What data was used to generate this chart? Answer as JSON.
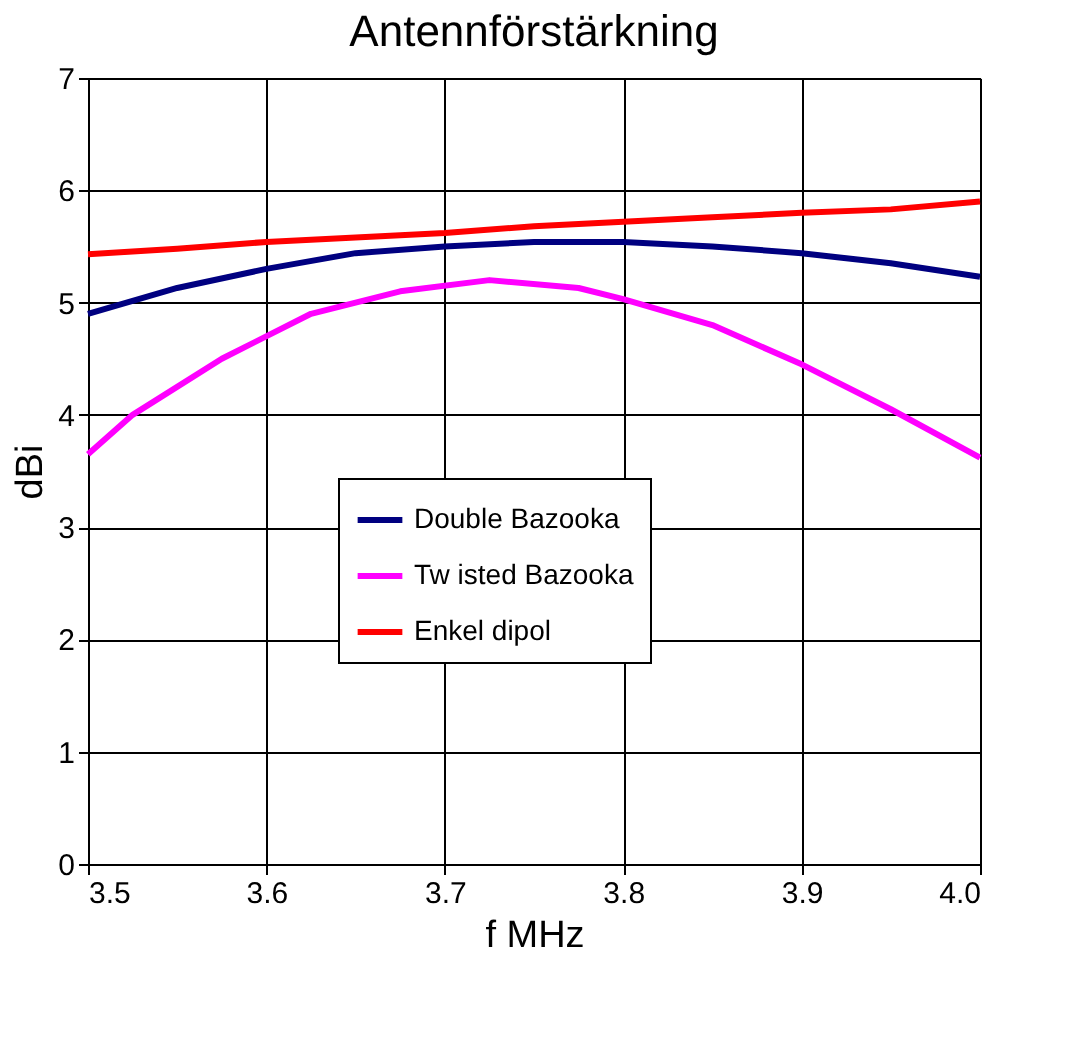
{
  "chart_data": {
    "type": "line",
    "title": "Antennförstärkning",
    "xlabel": "f MHz",
    "ylabel": "dBi",
    "xlim": [
      3.5,
      4.0
    ],
    "xticks": [
      {
        "value": 3.5,
        "label": "3.5"
      },
      {
        "value": 3.6,
        "label": "3.6"
      },
      {
        "value": 3.7,
        "label": "3.7"
      },
      {
        "value": 3.8,
        "label": "3.8"
      },
      {
        "value": 3.9,
        "label": "3.9"
      },
      {
        "value": 4.0,
        "label": "4.0"
      }
    ],
    "ylim": [
      0,
      7
    ],
    "yticks": [
      0,
      1,
      2,
      3,
      4,
      5,
      6,
      7
    ],
    "grid": true,
    "legend": "bottom right",
    "marker": "none",
    "line_style": "solid",
    "series": [
      {
        "name": "Double Bazooka",
        "color": "#000080",
        "x": [
          3.5,
          3.55,
          3.6,
          3.65,
          3.7,
          3.75,
          3.8,
          3.85,
          3.9,
          3.95,
          4.0
        ],
        "values": [
          4.9,
          5.13,
          5.3,
          5.44,
          5.5,
          5.54,
          5.54,
          5.5,
          5.44,
          5.35,
          5.23
        ]
      },
      {
        "name": "Tw isted Bazooka",
        "color": "#ff00ff",
        "x": [
          3.5,
          3.525,
          3.575,
          3.625,
          3.675,
          3.725,
          3.775,
          3.8,
          3.85,
          3.9,
          3.95,
          4.0
        ],
        "values": [
          3.65,
          4.0,
          4.5,
          4.9,
          5.1,
          5.2,
          5.13,
          5.03,
          4.8,
          4.45,
          4.05,
          3.62
        ]
      },
      {
        "name": "Enkel dipol",
        "color": "#ff0000",
        "x": [
          3.5,
          3.55,
          3.6,
          3.65,
          3.7,
          3.75,
          3.8,
          3.85,
          3.9,
          3.95,
          4.0
        ],
        "values": [
          5.43,
          5.48,
          5.54,
          5.58,
          5.62,
          5.68,
          5.72,
          5.76,
          5.8,
          5.83,
          5.9
        ]
      }
    ]
  }
}
